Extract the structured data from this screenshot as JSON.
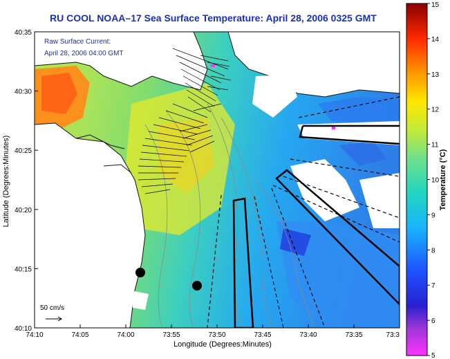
{
  "title": "RU COOL  NOAA–17  Sea Surface Temperature:  April 28, 2006 0325 GMT",
  "inset": {
    "current_label": "Raw Surface Current:",
    "current_time": "April 28, 2006 04:00 GMT"
  },
  "scale": {
    "label": "50 cm/s"
  },
  "axes": {
    "xlabel": "Longitude (Degrees:Minutes)",
    "ylabel": "Latitude (Degrees:Minutes)",
    "x_ticks": [
      "74:10",
      "74:05",
      "74:00",
      "73:55",
      "73:50",
      "73:45",
      "73:40",
      "73:35",
      "73:3"
    ],
    "y_ticks": [
      "40:35",
      "40:30",
      "40:25",
      "40:20",
      "40:15",
      "40:10"
    ]
  },
  "colorbar": {
    "label": "Temperature (°C)",
    "ticks": [
      "15",
      "14",
      "13",
      "12",
      "11",
      "10",
      "9",
      "8",
      "7",
      "6",
      "5"
    ],
    "range": [
      5,
      15
    ]
  },
  "colors": {
    "title": "#1a2fb8",
    "land": "#ffffff",
    "coast": "#111111"
  }
}
